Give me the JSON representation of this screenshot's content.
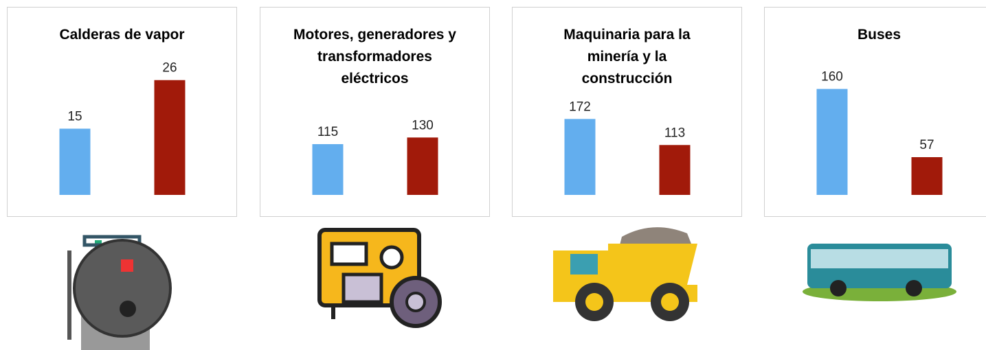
{
  "chart_data": [
    {
      "type": "bar",
      "title": "Calderas de vapor",
      "series": [
        {
          "color": "#63aeee",
          "values": [
            15
          ]
        },
        {
          "color": "#a11a0a",
          "values": [
            26
          ]
        }
      ],
      "ylim": [
        0,
        30
      ]
    },
    {
      "type": "bar",
      "title": "Motores, generadores y transformadores eléctricos",
      "series": [
        {
          "color": "#63aeee",
          "values": [
            115
          ]
        },
        {
          "color": "#a11a0a",
          "values": [
            130
          ]
        }
      ],
      "ylim": [
        0,
        300
      ]
    },
    {
      "type": "bar",
      "title": "Maquinaria para la minería y la construcción",
      "series": [
        {
          "color": "#63aeee",
          "values": [
            172
          ]
        },
        {
          "color": "#a11a0a",
          "values": [
            113
          ]
        }
      ],
      "ylim": [
        0,
        300
      ]
    },
    {
      "type": "bar",
      "title": "Buses",
      "series": [
        {
          "color": "#63aeee",
          "values": [
            160
          ]
        },
        {
          "color": "#a11a0a",
          "values": [
            57
          ]
        }
      ],
      "ylim": [
        0,
        200
      ]
    }
  ]
}
